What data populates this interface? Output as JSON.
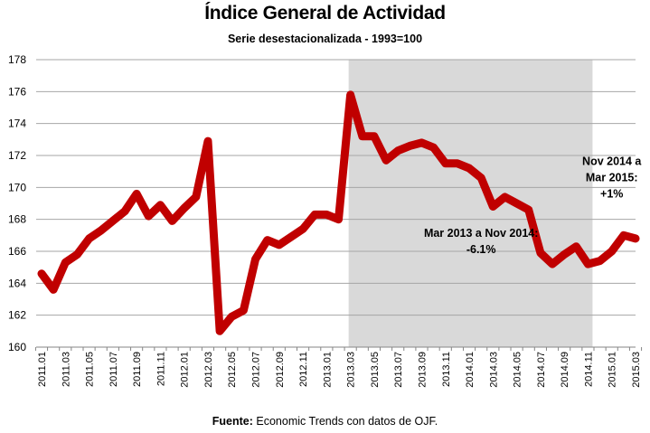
{
  "chart_data": {
    "type": "line",
    "title": "Índice General de Actividad",
    "subtitle": "Serie desestacionalizada - 1993=100",
    "xlabel": "",
    "ylabel": "",
    "ylim": [
      160,
      178
    ],
    "yticks": [
      160,
      162,
      164,
      166,
      168,
      170,
      172,
      174,
      176,
      178
    ],
    "grid": true,
    "x": [
      "2011.01",
      "2011.02",
      "2011.03",
      "2011.04",
      "2011.05",
      "2011.06",
      "2011.07",
      "2011.08",
      "2011.09",
      "2011.10",
      "2011.11",
      "2011.12",
      "2012.01",
      "2012.02",
      "2012.03",
      "2012.04",
      "2012.05",
      "2012.06",
      "2012.07",
      "2012.08",
      "2012.09",
      "2012.10",
      "2012.11",
      "2012.12",
      "2013.01",
      "2013.02",
      "2013.03",
      "2013.04",
      "2013.05",
      "2013.06",
      "2013.07",
      "2013.08",
      "2013.09",
      "2013.10",
      "2013.11",
      "2013.12",
      "2014.01",
      "2014.02",
      "2014.03",
      "2014.04",
      "2014.05",
      "2014.06",
      "2014.07",
      "2014.08",
      "2014.09",
      "2014.10",
      "2014.11",
      "2014.12",
      "2015.01",
      "2015.02",
      "2015.03"
    ],
    "xtick_labels": [
      "2011.01",
      "2011.03",
      "2011.05",
      "2011.07",
      "2011.09",
      "2011.11",
      "2012.01",
      "2012.03",
      "2012.05",
      "2012.07",
      "2012.09",
      "2012.11",
      "2013.01",
      "2013.03",
      "2013.05",
      "2013.07",
      "2013.09",
      "2013.11",
      "2014.01",
      "2014.03",
      "2014.05",
      "2014.07",
      "2014.09",
      "2014.11",
      "2015.01",
      "2015.03"
    ],
    "series": [
      {
        "name": "Índice General de Actividad",
        "color": "#C00000",
        "values": [
          164.6,
          163.6,
          165.3,
          165.8,
          166.8,
          167.3,
          167.9,
          168.5,
          169.6,
          168.2,
          168.9,
          167.9,
          168.7,
          169.4,
          172.9,
          161.0,
          161.9,
          162.3,
          165.5,
          166.7,
          166.4,
          166.9,
          167.4,
          168.3,
          168.3,
          168.0,
          175.8,
          173.2,
          173.2,
          171.7,
          172.3,
          172.6,
          172.8,
          172.5,
          171.5,
          171.5,
          171.2,
          170.6,
          168.8,
          169.4,
          169.0,
          168.6,
          165.9,
          165.2,
          165.8,
          166.3,
          165.2,
          165.4,
          166.0,
          167.0,
          166.8
        ]
      }
    ],
    "shaded_region": {
      "from": "2013.03",
      "to": "2014.11",
      "color": "#D9D9D9"
    },
    "annotations": [
      {
        "lines": [
          "Mar 2013 a Nov 2014:",
          "-6.1%"
        ],
        "anchor": "2014.02",
        "value": 166.9
      },
      {
        "lines": [
          "Nov 2014 a",
          "Mar 2015:",
          "+1%"
        ],
        "anchor": "2015.01",
        "value": 171.4
      }
    ],
    "colors": {
      "gridline": "#A6A6A6",
      "axis": "#868686"
    }
  },
  "source": {
    "label": "Fuente:",
    "text": " Economic Trends con datos de OJF."
  }
}
